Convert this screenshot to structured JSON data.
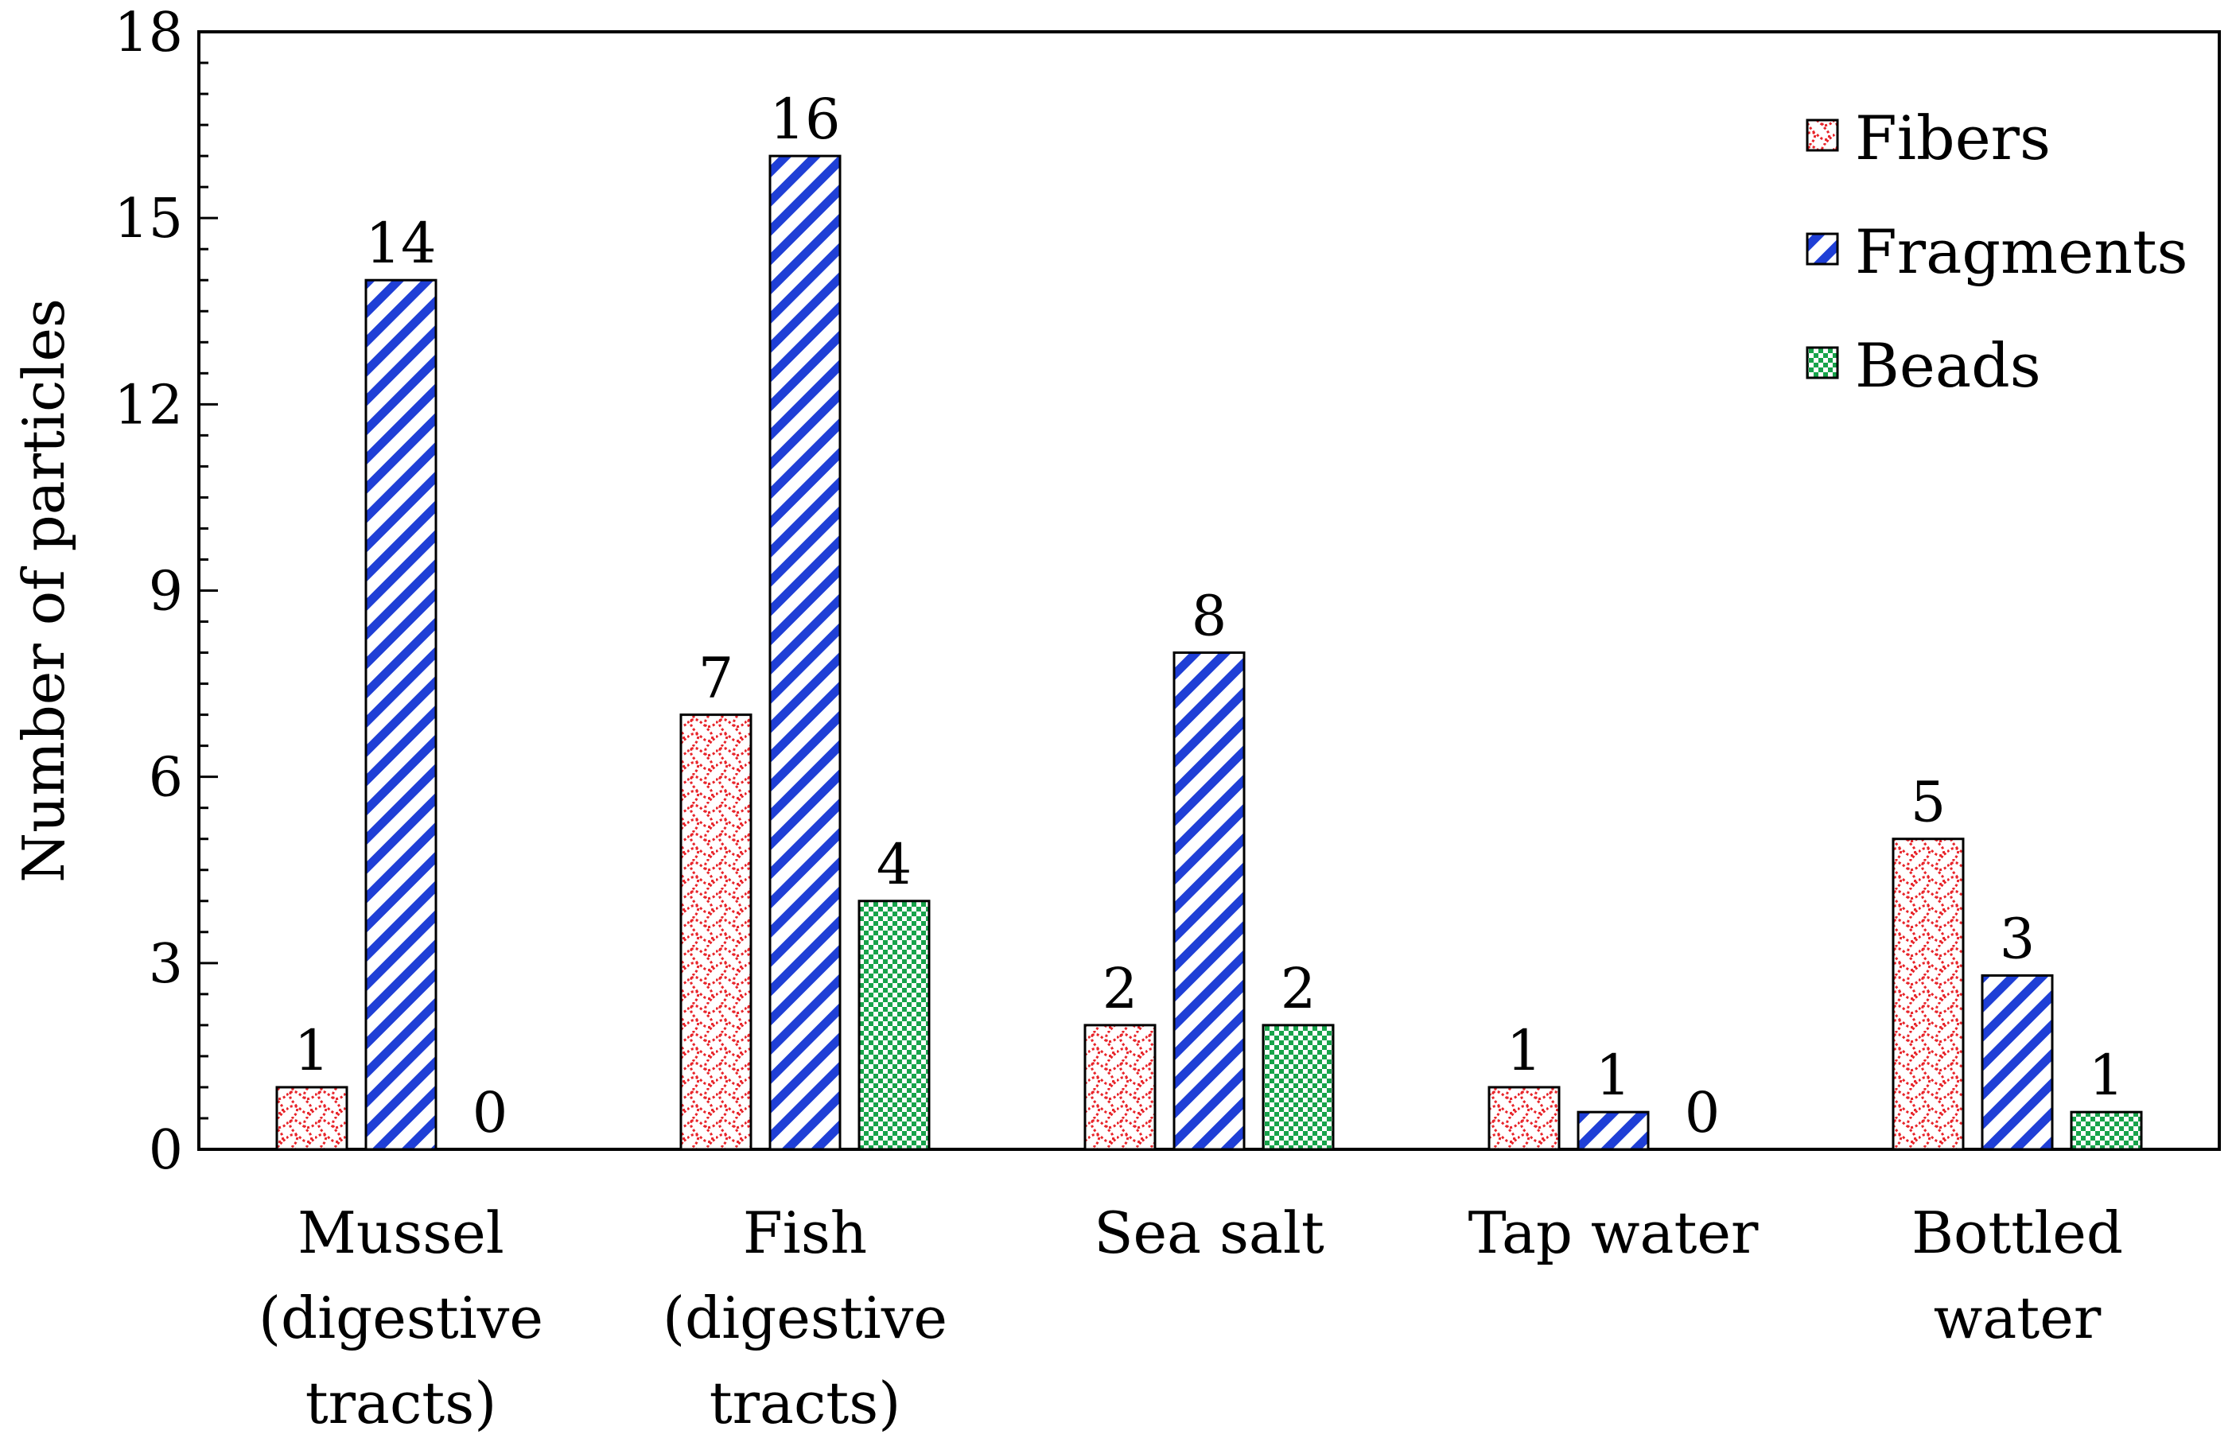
{
  "chart_data": {
    "type": "bar",
    "title": "",
    "xlabel": "",
    "ylabel": "Number of particles",
    "ylim": [
      0,
      18
    ],
    "yticks": [
      "0",
      "3",
      "6",
      "9",
      "12",
      "15",
      "18"
    ],
    "grid": false,
    "legend_position": "top-right",
    "categories": [
      [
        "Mussel",
        "(digestive",
        "tracts)"
      ],
      [
        "Fish",
        "(digestive",
        "tracts)"
      ],
      [
        "Sea salt"
      ],
      [
        "Tap water"
      ],
      [
        "Bottled",
        "water"
      ]
    ],
    "series": [
      {
        "name": "Fibers",
        "key": "fibers",
        "values": [
          1,
          7,
          2,
          1,
          5
        ],
        "labels": [
          "1",
          "7",
          "2",
          "1",
          "5"
        ]
      },
      {
        "name": "Fragments",
        "key": "fragments",
        "values": [
          14,
          16,
          8,
          0.6,
          2.8
        ],
        "labels": [
          "14",
          "16",
          "8",
          "1",
          "3"
        ]
      },
      {
        "name": "Beads",
        "key": "beads",
        "values": [
          0,
          4,
          2,
          0,
          0.6
        ],
        "labels": [
          "0",
          "4",
          "2",
          "0",
          "1"
        ]
      }
    ],
    "colors": {
      "fibers": "#e8242a",
      "fragments": "#1f3fd6",
      "beads": "#17a34a"
    }
  }
}
